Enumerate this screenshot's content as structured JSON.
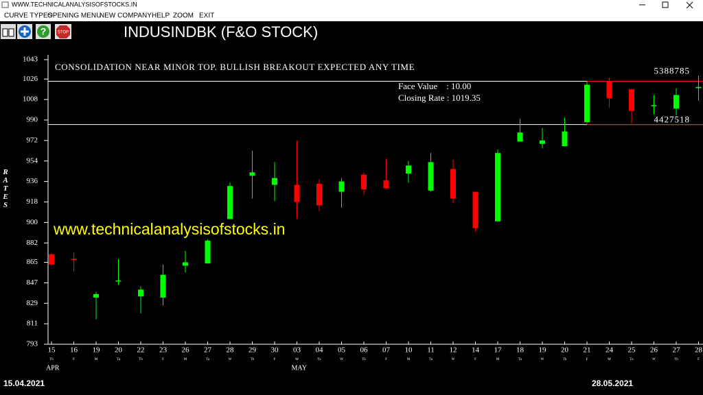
{
  "window": {
    "title": "WWW.TECHNICALANALYSISOFSTOCKS.IN"
  },
  "menu": [
    "CURVE TYPES",
    "OPENING MENU",
    "NEW COMPANY",
    "HELP",
    "ZOOM",
    "EXIT"
  ],
  "chart_data": {
    "type": "candlestick",
    "title": "INDUSINDBK (F&O STOCK)",
    "annotation": "CONSOLIDATION NEAR MINOR TOP. BULLISH BREAKOUT EXPECTED ANY TIME",
    "face_value_text": "Face Value    : 10.00",
    "closing_rate_text": "Closing Rate : 1019.35",
    "watermark": "www.technicalanalysisofstocks.in",
    "y_label": "RATES",
    "start_date": "15.04.2021",
    "end_date": "28.05.2021",
    "categories": [
      "15",
      "16",
      "19",
      "20",
      "22",
      "23",
      "26",
      "27",
      "28",
      "29",
      "30",
      "03",
      "04",
      "05",
      "06",
      "07",
      "10",
      "11",
      "12",
      "14",
      "17",
      "18",
      "19",
      "20",
      "21",
      "24",
      "25",
      "26",
      "27",
      "28"
    ],
    "weekdays": [
      "Th",
      "F",
      "M",
      "Tu",
      "Th",
      "F",
      "M",
      "Tu",
      "W",
      "Th",
      "F",
      "M",
      "Tu",
      "W",
      "Th",
      "F",
      "M",
      "Tu",
      "W",
      "F",
      "M",
      "Tu",
      "W",
      "Th",
      "F",
      "M",
      "Tu",
      "W",
      "Th",
      "F"
    ],
    "months": [
      "APR",
      null,
      null,
      null,
      null,
      null,
      null,
      null,
      null,
      null,
      null,
      "MAY",
      null,
      null,
      null,
      null,
      null,
      null,
      null,
      null,
      null,
      null,
      null,
      null,
      null,
      null,
      null,
      null,
      null,
      null
    ],
    "open": [
      872,
      868,
      834,
      849,
      835,
      834,
      862,
      864,
      903,
      941,
      933,
      933,
      934,
      927,
      942,
      937,
      943,
      928,
      947,
      927,
      901,
      971,
      969,
      967,
      988,
      1024,
      1017,
      1003,
      1000,
      1018
    ],
    "high": [
      873,
      874,
      839,
      868,
      844,
      863,
      875,
      885,
      935,
      963,
      953,
      972,
      938,
      939,
      944,
      956,
      954,
      961,
      955,
      927,
      964,
      991,
      983,
      992,
      1024,
      1027,
      1017,
      1012,
      1018,
      1029
    ],
    "low": [
      862,
      857,
      815,
      845,
      820,
      827,
      856,
      864,
      903,
      921,
      919,
      903,
      910,
      913,
      924,
      929,
      935,
      927,
      917,
      892,
      901,
      971,
      965,
      967,
      988,
      1001,
      986,
      995,
      994,
      1007
    ],
    "close": [
      863,
      867,
      837,
      849,
      841,
      854,
      865,
      884,
      932,
      944,
      939,
      918,
      915,
      936,
      929,
      930,
      950,
      953,
      921,
      895,
      961,
      979,
      972,
      980,
      1021,
      1009,
      998,
      1003,
      1012,
      1019
    ],
    "up_color": "#00ff00",
    "down_color": "#ff0000",
    "hlines": [
      1024,
      986
    ],
    "hline_labels": [
      5388785,
      4427518
    ],
    "ylim": [
      793,
      1043
    ],
    "yticks": [
      793,
      811,
      829,
      847,
      865,
      882,
      900,
      918,
      936,
      954,
      972,
      990,
      1008,
      1026,
      1043
    ]
  }
}
